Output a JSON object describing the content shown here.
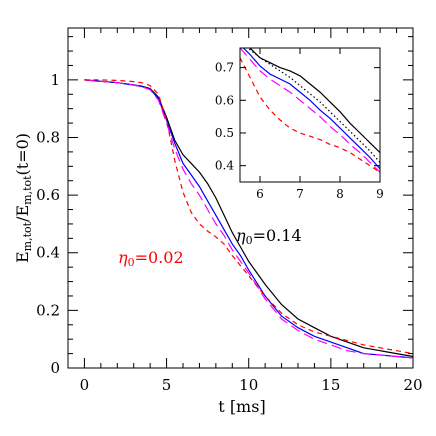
{
  "chart_data": [
    {
      "type": "line",
      "panel": "main",
      "xlabel": "t [ms]",
      "ylabel": "E_m,tot / E_m,tot(t=0)",
      "xlim": [
        -1,
        20
      ],
      "ylim": [
        0,
        1.18
      ],
      "x_ticks": [
        0,
        5,
        10,
        15,
        20
      ],
      "y_ticks": [
        0,
        0.2,
        0.4,
        0.6,
        0.8,
        1
      ],
      "y_tick_labels": [
        "0",
        "0.2",
        "0.4",
        "0.6",
        "0.8",
        "1"
      ],
      "x_tick_labels": [
        "0",
        "5",
        "10",
        "15",
        "20"
      ],
      "grid": false,
      "series": [
        {
          "color": "#000000",
          "dash": "solid",
          "x": [
            0,
            1,
            2,
            3,
            3.5,
            4,
            4.5,
            5,
            5.5,
            6,
            6.5,
            7,
            7.5,
            8,
            8.5,
            9,
            9.5,
            10,
            11,
            12,
            13,
            14,
            15,
            16,
            17,
            18,
            19,
            20
          ],
          "y": [
            1.0,
            0.995,
            0.99,
            0.983,
            0.978,
            0.97,
            0.94,
            0.87,
            0.79,
            0.74,
            0.71,
            0.68,
            0.64,
            0.59,
            0.53,
            0.47,
            0.42,
            0.37,
            0.29,
            0.22,
            0.17,
            0.14,
            0.11,
            0.09,
            0.07,
            0.06,
            0.05,
            0.04
          ]
        },
        {
          "color": "#0000ff",
          "dash": "solid",
          "x": [
            0,
            1,
            2,
            3,
            3.5,
            4,
            4.5,
            5,
            5.5,
            6,
            6.5,
            7,
            7.5,
            8,
            8.5,
            9,
            9.5,
            10,
            11,
            12,
            13,
            14,
            15,
            16,
            17,
            18,
            19,
            20
          ],
          "y": [
            1.0,
            0.995,
            0.99,
            0.982,
            0.977,
            0.968,
            0.935,
            0.86,
            0.78,
            0.71,
            0.67,
            0.63,
            0.58,
            0.53,
            0.48,
            0.43,
            0.39,
            0.34,
            0.25,
            0.18,
            0.14,
            0.11,
            0.09,
            0.07,
            0.05,
            0.045,
            0.04,
            0.035
          ]
        },
        {
          "color": "#ff00ff",
          "dash": "longdash",
          "x": [
            0,
            1,
            2,
            3,
            3.5,
            4,
            4.5,
            5,
            5.5,
            6,
            6.5,
            7,
            7.5,
            8,
            8.5,
            9,
            9.5,
            10,
            11,
            12,
            13,
            14,
            15,
            16,
            17,
            18,
            19,
            20
          ],
          "y": [
            1.0,
            0.995,
            0.99,
            0.982,
            0.976,
            0.966,
            0.93,
            0.85,
            0.76,
            0.69,
            0.64,
            0.6,
            0.55,
            0.5,
            0.46,
            0.41,
            0.37,
            0.33,
            0.24,
            0.17,
            0.13,
            0.1,
            0.08,
            0.06,
            0.05,
            0.045,
            0.04,
            0.035
          ]
        },
        {
          "color": "#ff0000",
          "dash": "shortdash",
          "x": [
            0,
            1,
            2,
            3,
            3.5,
            4,
            4.5,
            5,
            5.5,
            6,
            6.5,
            7,
            7.5,
            8,
            8.5,
            9,
            9.5,
            10,
            11,
            12,
            13,
            14,
            15,
            16,
            17,
            18,
            19,
            20
          ],
          "y": [
            1.0,
            1.0,
            0.998,
            0.994,
            0.99,
            0.98,
            0.95,
            0.86,
            0.72,
            0.61,
            0.54,
            0.5,
            0.475,
            0.455,
            0.43,
            0.39,
            0.355,
            0.32,
            0.25,
            0.19,
            0.15,
            0.125,
            0.11,
            0.095,
            0.08,
            0.07,
            0.06,
            0.05
          ]
        }
      ],
      "annotations": [
        {
          "text": "η0=0.02",
          "color": "#ff0000"
        },
        {
          "text": "η0=0.14",
          "color": "#000000"
        }
      ]
    },
    {
      "type": "line",
      "panel": "inset",
      "xlim": [
        5.5,
        9
      ],
      "ylim": [
        0.35,
        0.76
      ],
      "x_ticks": [
        6,
        7,
        8,
        9
      ],
      "y_ticks": [
        0.4,
        0.5,
        0.6,
        0.7
      ],
      "x_tick_labels": [
        "6",
        "7",
        "8",
        "9"
      ],
      "y_tick_labels": [
        "0.4",
        "0.5",
        "0.6",
        "0.7"
      ],
      "grid": false,
      "series": [
        {
          "color": "#000000",
          "dash": "solid",
          "x": [
            5.5,
            5.75,
            6,
            6.25,
            6.5,
            6.75,
            7,
            7.25,
            7.5,
            7.75,
            8,
            8.25,
            8.5,
            8.75,
            9
          ],
          "y": [
            0.79,
            0.76,
            0.73,
            0.715,
            0.7,
            0.69,
            0.675,
            0.65,
            0.625,
            0.595,
            0.565,
            0.53,
            0.5,
            0.47,
            0.44
          ]
        },
        {
          "color": "#000000",
          "dash": "dotted",
          "x": [
            5.5,
            5.75,
            6,
            6.25,
            6.5,
            6.75,
            7,
            7.25,
            7.5,
            7.75,
            8,
            8.25,
            8.5,
            8.75,
            9
          ],
          "y": [
            0.78,
            0.755,
            0.73,
            0.71,
            0.69,
            0.67,
            0.645,
            0.62,
            0.595,
            0.565,
            0.535,
            0.505,
            0.475,
            0.445,
            0.41
          ]
        },
        {
          "color": "#0000ff",
          "dash": "solid",
          "x": [
            5.5,
            5.75,
            6,
            6.25,
            6.5,
            6.75,
            7,
            7.25,
            7.5,
            7.75,
            8,
            8.25,
            8.5,
            8.75,
            9
          ],
          "y": [
            0.77,
            0.74,
            0.705,
            0.68,
            0.665,
            0.65,
            0.625,
            0.6,
            0.57,
            0.545,
            0.515,
            0.485,
            0.455,
            0.425,
            0.39
          ]
        },
        {
          "color": "#ff00ff",
          "dash": "longdash",
          "x": [
            5.5,
            5.75,
            6,
            6.25,
            6.5,
            6.75,
            7,
            7.25,
            7.5,
            7.75,
            8,
            8.25,
            8.5,
            8.75,
            9
          ],
          "y": [
            0.76,
            0.725,
            0.69,
            0.665,
            0.645,
            0.625,
            0.6,
            0.575,
            0.55,
            0.52,
            0.495,
            0.465,
            0.44,
            0.41,
            0.38
          ]
        },
        {
          "color": "#ff0000",
          "dash": "shortdash",
          "x": [
            5.5,
            5.75,
            6,
            6.25,
            6.5,
            6.75,
            7,
            7.25,
            7.5,
            7.75,
            8,
            8.25,
            8.5,
            8.75,
            9
          ],
          "y": [
            0.73,
            0.67,
            0.61,
            0.57,
            0.54,
            0.515,
            0.5,
            0.49,
            0.48,
            0.465,
            0.455,
            0.44,
            0.42,
            0.4,
            0.38
          ]
        }
      ]
    }
  ]
}
